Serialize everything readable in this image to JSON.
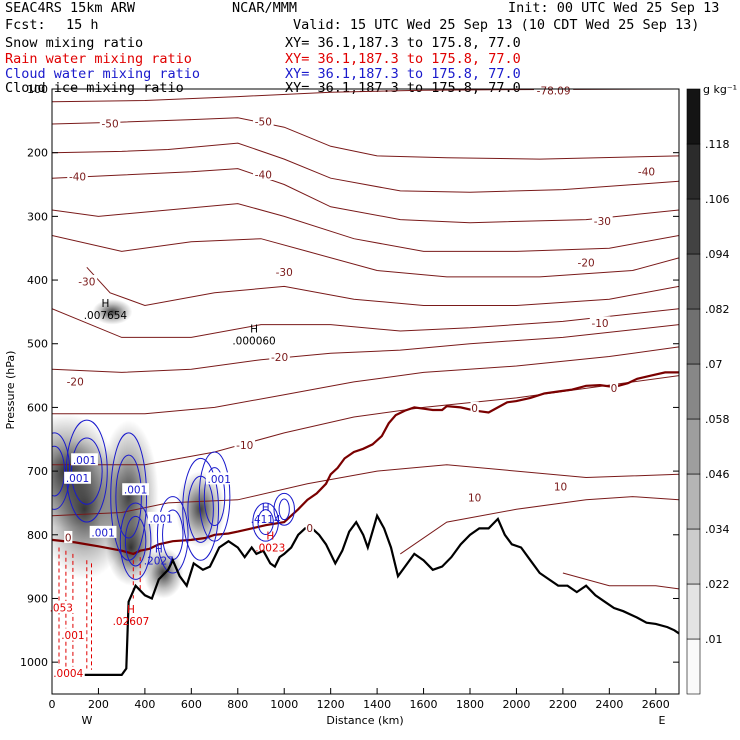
{
  "header": {
    "model": "SEAC4RS 15km ARW",
    "fcst_label": "Fcst:",
    "fcst_value": "15 h",
    "center": "NCAR/MMM",
    "init": "Init: 00 UTC Wed 25 Sep 13",
    "valid": "Valid: 15 UTC Wed 25 Sep 13 (10 CDT Wed 25 Sep 13)",
    "fields": [
      {
        "name": "Snow mixing ratio",
        "color": "#000000",
        "xy": "XY=  36.1,187.3 to 175.8, 77.0"
      },
      {
        "name": "Rain water mixing ratio",
        "color": "#e00000",
        "xy": "XY=  36.1,187.3 to 175.8, 77.0"
      },
      {
        "name": "Cloud water mixing ratio",
        "color": "#1a1acc",
        "xy": "XY=  36.1,187.3 to 175.8, 77.0"
      },
      {
        "name": "Cloud ice mixing ratio",
        "color": "#000000",
        "xy": "XY=  36.1,187.3 to 175.8, 77.0"
      }
    ]
  },
  "colors": {
    "temperature": "#7a1a1a",
    "freezing": "#7a0000",
    "rain": "#e00000",
    "cloud": "#1a1acc",
    "terrain": "#000000"
  },
  "chart_data": {
    "type": "contour",
    "xlabel": "Distance (km)",
    "ylabel": "Pressure (hPa)",
    "xlim": [
      0,
      2700
    ],
    "ylim": [
      1050,
      100
    ],
    "xticks": [
      0,
      200,
      400,
      600,
      800,
      1000,
      1200,
      1400,
      1600,
      1800,
      2000,
      2200,
      2400,
      2600
    ],
    "yticks": [
      100,
      200,
      300,
      400,
      500,
      600,
      700,
      800,
      900,
      1000
    ],
    "x_end_labels": {
      "left": "W",
      "right": "E"
    },
    "colorbar": {
      "unit": "g kg⁻¹",
      "labels": [
        ".01",
        ".022",
        ".034",
        ".046",
        ".058",
        ".07",
        ".082",
        ".094",
        ".106",
        ".118"
      ],
      "values": [
        0.01,
        0.022,
        0.034,
        0.046,
        0.058,
        0.07,
        0.082,
        0.094,
        0.106,
        0.118
      ]
    },
    "temperature_labels": [
      {
        "text": "-50",
        "x": 250,
        "p": 155
      },
      {
        "text": "-50",
        "x": 910,
        "p": 152
      },
      {
        "text": "-40",
        "x": 110,
        "p": 238
      },
      {
        "text": "-40",
        "x": 910,
        "p": 235
      },
      {
        "text": "-40",
        "x": 2560,
        "p": 230
      },
      {
        "text": "-30",
        "x": 1000,
        "p": 388
      },
      {
        "text": "-30",
        "x": 2370,
        "p": 308
      },
      {
        "text": "-30",
        "x": 150,
        "p": 403
      },
      {
        "text": "-20",
        "x": 2300,
        "p": 373
      },
      {
        "text": "-20",
        "x": 980,
        "p": 522
      },
      {
        "text": "-20",
        "x": 100,
        "p": 560
      },
      {
        "text": "-10",
        "x": 2360,
        "p": 468
      },
      {
        "text": "-10",
        "x": 830,
        "p": 660
      },
      {
        "text": "0",
        "x": 2420,
        "p": 570
      },
      {
        "text": "0",
        "x": 1820,
        "p": 602
      },
      {
        "text": "0",
        "x": 1110,
        "p": 790
      },
      {
        "text": "0",
        "x": 70,
        "p": 805
      },
      {
        "text": "10",
        "x": 2190,
        "p": 725
      },
      {
        "text": "10",
        "x": 1820,
        "p": 742
      },
      {
        "text": "-78.09",
        "x": 2160,
        "p": 103
      }
    ],
    "extrema_labels": [
      {
        "kind": "H",
        "value": ".007654",
        "x": 230,
        "p": 455,
        "color": "#000000"
      },
      {
        "kind": "H",
        "value": ".000060",
        "x": 870,
        "p": 495,
        "color": "#000000"
      },
      {
        "kind": "H",
        "value": ".4114",
        "x": 920,
        "p": 775,
        "color": "#1a1acc"
      },
      {
        "kind": "H",
        "value": ".0023",
        "x": 940,
        "p": 820,
        "color": "#e00000"
      },
      {
        "kind": "H",
        "value": ".2027",
        "x": 460,
        "p": 840,
        "color": "#1a1acc"
      },
      {
        "kind": "H",
        "value": ".02607",
        "x": 340,
        "p": 935,
        "color": "#e00000"
      }
    ],
    "cloud_labels": [
      {
        "text": ".001",
        "x": 140,
        "p": 683
      },
      {
        "text": ".001",
        "x": 110,
        "p": 712
      },
      {
        "text": ".001",
        "x": 360,
        "p": 730
      },
      {
        "text": ".001",
        "x": 720,
        "p": 713
      },
      {
        "text": ".001",
        "x": 220,
        "p": 797
      },
      {
        "text": ".001",
        "x": 470,
        "p": 775
      }
    ],
    "rain_labels": [
      {
        "text": ".001",
        "x": 90,
        "p": 958
      },
      {
        "text": ".0004",
        "x": 70,
        "p": 1018
      },
      {
        "text": ".053",
        "x": 40,
        "p": 915
      }
    ],
    "terrain_profile": [
      [
        0,
        1020
      ],
      [
        300,
        1020
      ],
      [
        320,
        1010
      ],
      [
        330,
        905
      ],
      [
        360,
        880
      ],
      [
        400,
        895
      ],
      [
        430,
        900
      ],
      [
        460,
        870
      ],
      [
        500,
        855
      ],
      [
        520,
        840
      ],
      [
        550,
        865
      ],
      [
        580,
        880
      ],
      [
        610,
        845
      ],
      [
        650,
        855
      ],
      [
        680,
        850
      ],
      [
        700,
        835
      ],
      [
        720,
        820
      ],
      [
        760,
        810
      ],
      [
        800,
        820
      ],
      [
        830,
        835
      ],
      [
        860,
        820
      ],
      [
        880,
        830
      ],
      [
        910,
        825
      ],
      [
        940,
        845
      ],
      [
        960,
        850
      ],
      [
        980,
        835
      ],
      [
        1000,
        830
      ],
      [
        1030,
        820
      ],
      [
        1060,
        800
      ],
      [
        1090,
        790
      ],
      [
        1120,
        790
      ],
      [
        1150,
        800
      ],
      [
        1180,
        815
      ],
      [
        1220,
        845
      ],
      [
        1250,
        825
      ],
      [
        1280,
        795
      ],
      [
        1310,
        780
      ],
      [
        1340,
        800
      ],
      [
        1360,
        820
      ],
      [
        1380,
        795
      ],
      [
        1400,
        770
      ],
      [
        1430,
        790
      ],
      [
        1460,
        820
      ],
      [
        1490,
        865
      ],
      [
        1520,
        850
      ],
      [
        1560,
        830
      ],
      [
        1600,
        840
      ],
      [
        1640,
        855
      ],
      [
        1680,
        850
      ],
      [
        1720,
        835
      ],
      [
        1760,
        815
      ],
      [
        1800,
        800
      ],
      [
        1840,
        790
      ],
      [
        1880,
        790
      ],
      [
        1920,
        775
      ],
      [
        1950,
        800
      ],
      [
        1980,
        815
      ],
      [
        2020,
        820
      ],
      [
        2060,
        840
      ],
      [
        2100,
        860
      ],
      [
        2140,
        870
      ],
      [
        2180,
        880
      ],
      [
        2220,
        880
      ],
      [
        2260,
        890
      ],
      [
        2300,
        880
      ],
      [
        2340,
        895
      ],
      [
        2380,
        905
      ],
      [
        2420,
        915
      ],
      [
        2460,
        920
      ],
      [
        2520,
        930
      ],
      [
        2560,
        938
      ],
      [
        2600,
        940
      ],
      [
        2650,
        945
      ],
      [
        2680,
        950
      ],
      [
        2700,
        955
      ]
    ],
    "freezing_level": [
      [
        0,
        808
      ],
      [
        100,
        812
      ],
      [
        200,
        818
      ],
      [
        300,
        825
      ],
      [
        350,
        830
      ],
      [
        380,
        825
      ],
      [
        420,
        822
      ],
      [
        460,
        815
      ],
      [
        520,
        810
      ],
      [
        600,
        808
      ],
      [
        660,
        805
      ],
      [
        700,
        800
      ],
      [
        760,
        798
      ],
      [
        800,
        795
      ],
      [
        860,
        790
      ],
      [
        920,
        785
      ],
      [
        1000,
        780
      ],
      [
        1060,
        760
      ],
      [
        1100,
        745
      ],
      [
        1140,
        735
      ],
      [
        1180,
        720
      ],
      [
        1200,
        705
      ],
      [
        1230,
        695
      ],
      [
        1260,
        680
      ],
      [
        1300,
        670
      ],
      [
        1340,
        665
      ],
      [
        1380,
        658
      ],
      [
        1420,
        645
      ],
      [
        1450,
        625
      ],
      [
        1480,
        612
      ],
      [
        1520,
        605
      ],
      [
        1560,
        600
      ],
      [
        1600,
        602
      ],
      [
        1640,
        604
      ],
      [
        1680,
        604
      ],
      [
        1700,
        598
      ],
      [
        1760,
        600
      ],
      [
        1820,
        605
      ],
      [
        1880,
        608
      ],
      [
        1920,
        600
      ],
      [
        1960,
        592
      ],
      [
        2000,
        590
      ],
      [
        2060,
        585
      ],
      [
        2120,
        578
      ],
      [
        2180,
        575
      ],
      [
        2240,
        572
      ],
      [
        2300,
        566
      ],
      [
        2360,
        565
      ],
      [
        2420,
        568
      ],
      [
        2480,
        562
      ],
      [
        2520,
        555
      ],
      [
        2580,
        550
      ],
      [
        2640,
        545
      ],
      [
        2700,
        545
      ]
    ]
  }
}
